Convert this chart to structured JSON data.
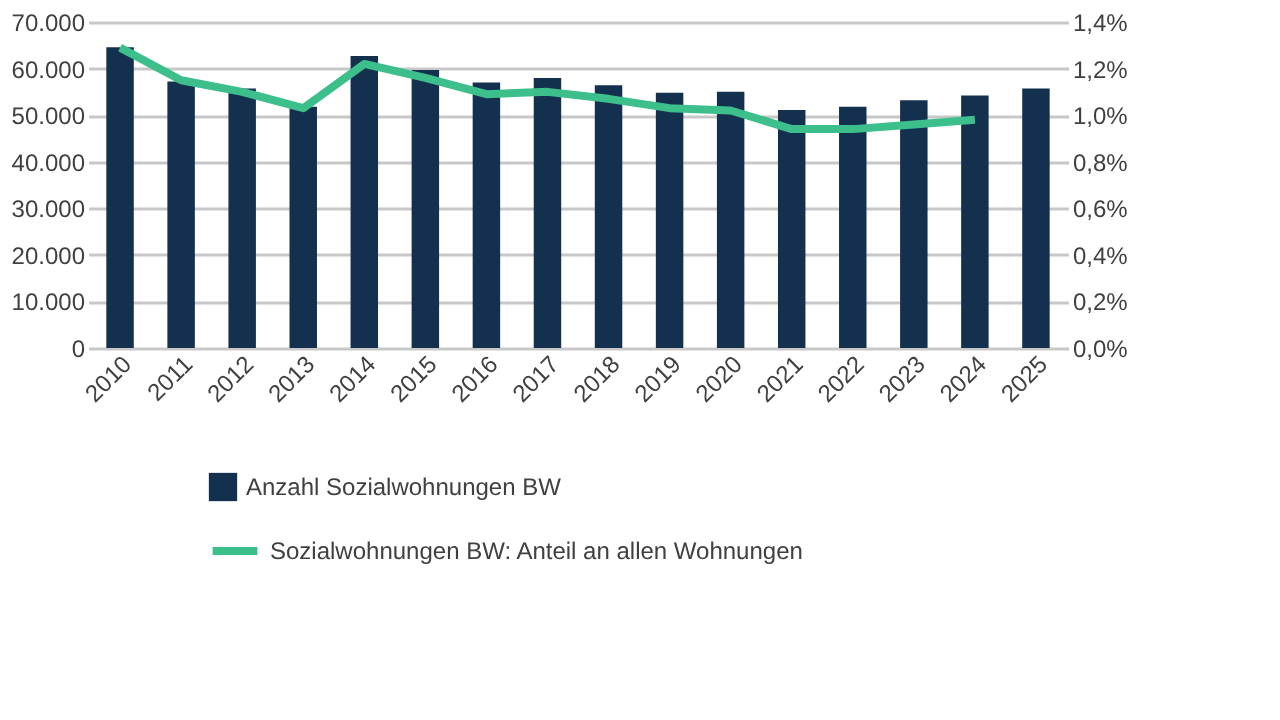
{
  "chart_data": {
    "type": "bar",
    "categories": [
      "2010",
      "2011",
      "2012",
      "2013",
      "2014",
      "2015",
      "2016",
      "2017",
      "2018",
      "2019",
      "2020",
      "2021",
      "2022",
      "2023",
      "2024",
      "2025"
    ],
    "series": [
      {
        "name": "Anzahl Sozialwohnungen BW",
        "color": "#14304f",
        "values": [
          64600,
          57200,
          55700,
          51800,
          62700,
          59700,
          57000,
          58000,
          56400,
          54800,
          55000,
          51100,
          51800,
          53200,
          54200,
          55700
        ]
      },
      {
        "name": "Sozialwohnungen BW: Anteil an allen Wohnungen",
        "type": "line",
        "axis": "y2",
        "color": "#3dbf8c",
        "values": [
          1.29,
          1.15,
          1.1,
          1.03,
          1.22,
          1.16,
          1.09,
          1.1,
          1.07,
          1.03,
          1.02,
          0.94,
          0.94,
          0.96,
          0.98,
          null
        ]
      }
    ],
    "ylim": [
      0,
      70000
    ],
    "yticks": [
      {
        "value": 0,
        "label": "0"
      },
      {
        "value": 10000,
        "label": "10.000"
      },
      {
        "value": 20000,
        "label": "20.000"
      },
      {
        "value": 30000,
        "label": "30.000"
      },
      {
        "value": 40000,
        "label": "40.000"
      },
      {
        "value": 50000,
        "label": "50.000"
      },
      {
        "value": 60000,
        "label": "60.000"
      },
      {
        "value": 70000,
        "label": "70.000"
      }
    ],
    "y2lim": [
      0,
      1.4
    ],
    "y2ticks": [
      {
        "value": 0,
        "label": "0,0%"
      },
      {
        "value": 0.2,
        "label": "0,2%"
      },
      {
        "value": 0.4,
        "label": "0,4%"
      },
      {
        "value": 0.6,
        "label": "0,6%"
      },
      {
        "value": 0.8,
        "label": "0,8%"
      },
      {
        "value": 1.0,
        "label": "1,0%"
      },
      {
        "value": 1.2,
        "label": "1,2%"
      },
      {
        "value": 1.4,
        "label": "1,4%"
      }
    ],
    "grid": "y",
    "legend": "bottom",
    "marker": "none",
    "line_style": "solid"
  }
}
